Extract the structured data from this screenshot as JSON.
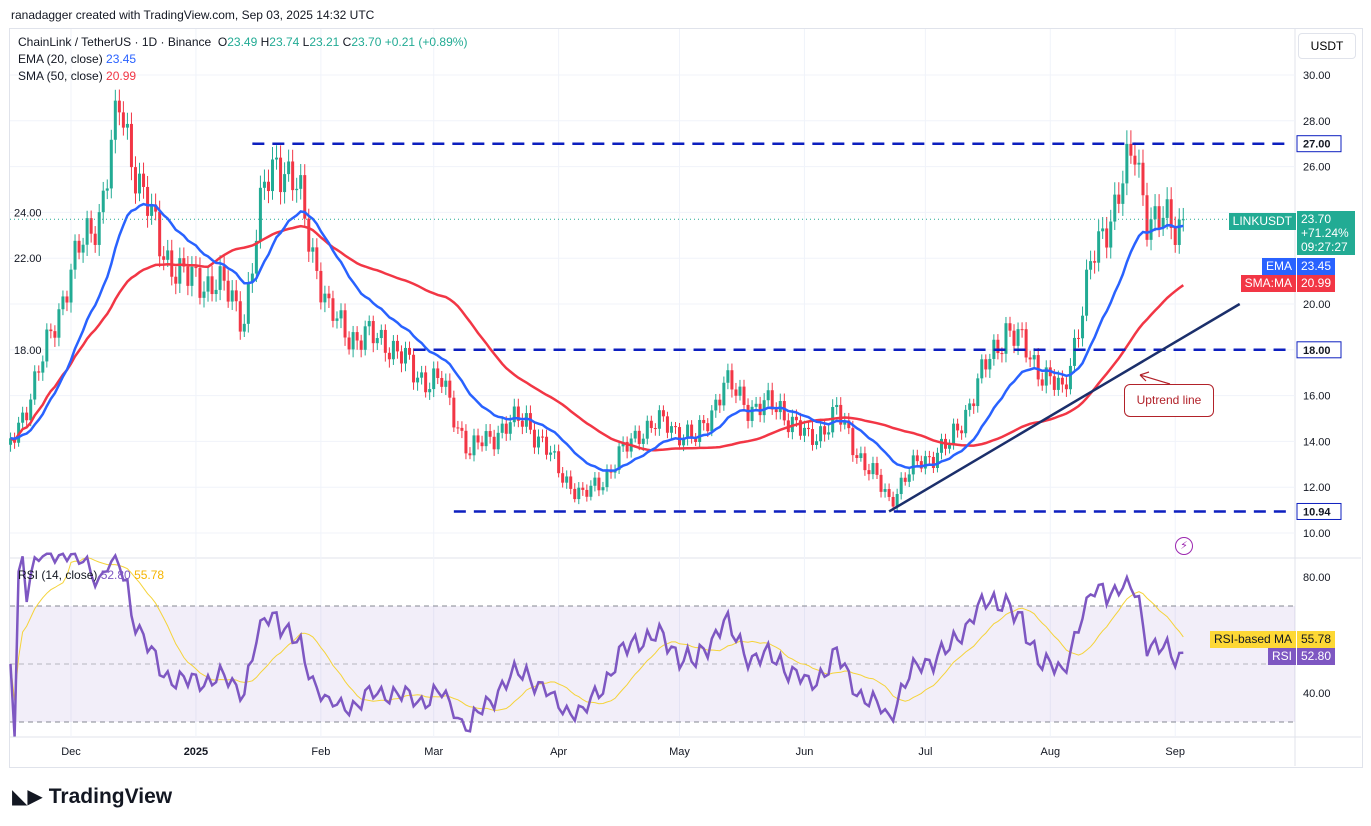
{
  "header": {
    "credit": "ranadagger created with TradingView.com, Sep 03, 2025 14:32 UTC",
    "symbol": "ChainLink / TetherUS · 1D · Binance",
    "o": "23.49",
    "h": "23.74",
    "l": "23.21",
    "c": "23.70",
    "change": "+0.21 (+0.89%)",
    "ema_label": "EMA (20, close)",
    "ema_value": "23.45",
    "sma_label": "SMA (50, close)",
    "sma_value": "20.99",
    "rsi_label": "RSI (14, close)",
    "rsi_value": "52.80",
    "rsi_ma_value": "55.78"
  },
  "currency": "USDT",
  "tags": {
    "symbol": "LINKUSDT",
    "price": "23.70",
    "pct": "+71.24%",
    "countdown": "09:27:27",
    "ema": "EMA",
    "ema_val": "23.45",
    "sma": "SMA:MA",
    "sma_val": "20.99",
    "rsi_ma": "RSI-based MA",
    "rsi_ma_val": "55.78",
    "rsi": "RSI",
    "rsi_val": "52.80"
  },
  "logo": "TradingView",
  "colors": {
    "up": "#22ab94",
    "down": "#f23645",
    "ema": "#2962ff",
    "sma": "#f23645",
    "rsi": "#7e57c2",
    "rsi_ma": "#f5d33a",
    "level": "#0d1fbf",
    "trend": "#1b2f6b"
  },
  "chart_data": {
    "type": "candlestick",
    "price_axis": {
      "ticks": [
        10,
        12,
        14,
        16,
        18,
        20,
        22,
        24,
        26,
        28,
        30
      ],
      "range": [
        9.5,
        31
      ]
    },
    "time_axis": {
      "ticks": [
        {
          "date": "2024-12-01",
          "label": "Dec"
        },
        {
          "date": "2025-01-01",
          "label": "2025"
        },
        {
          "date": "2025-02-01",
          "label": "Feb"
        },
        {
          "date": "2025-03-01",
          "label": "Mar"
        },
        {
          "date": "2025-04-01",
          "label": "Apr"
        },
        {
          "date": "2025-05-01",
          "label": "May"
        },
        {
          "date": "2025-06-01",
          "label": "Jun"
        },
        {
          "date": "2025-07-01",
          "label": "Jul"
        },
        {
          "date": "2025-08-01",
          "label": "Aug"
        },
        {
          "date": "2025-09-01",
          "label": "Sep"
        }
      ]
    },
    "closes": [
      [
        "2024-11-16",
        13.8
      ],
      [
        "2024-11-24",
        17.5
      ],
      [
        "2024-12-01",
        21.5
      ],
      [
        "2024-12-08",
        24
      ],
      [
        "2024-12-13",
        28.5
      ],
      [
        "2024-12-17",
        26
      ],
      [
        "2024-12-23",
        22.5
      ],
      [
        "2024-12-30",
        21
      ],
      [
        "2025-01-06",
        21
      ],
      [
        "2025-01-13",
        19.5
      ],
      [
        "2025-01-18",
        25
      ],
      [
        "2025-01-21",
        26.5
      ],
      [
        "2025-01-27",
        24.5
      ],
      [
        "2025-02-03",
        19.5
      ],
      [
        "2025-02-10",
        18.5
      ],
      [
        "2025-02-17",
        18.5
      ],
      [
        "2025-02-24",
        17
      ],
      [
        "2025-03-03",
        16.5
      ],
      [
        "2025-03-10",
        13.5
      ],
      [
        "2025-03-17",
        14.5
      ],
      [
        "2025-03-24",
        15
      ],
      [
        "2025-03-31",
        13
      ],
      [
        "2025-04-07",
        11.5
      ],
      [
        "2025-04-14",
        12.8
      ],
      [
        "2025-04-21",
        14.5
      ],
      [
        "2025-04-28",
        14.8
      ],
      [
        "2025-05-05",
        14
      ],
      [
        "2025-05-12",
        16.5
      ],
      [
        "2025-05-19",
        15.5
      ],
      [
        "2025-05-26",
        15.5
      ],
      [
        "2025-06-02",
        14
      ],
      [
        "2025-06-09",
        15.2
      ],
      [
        "2025-06-16",
        13
      ],
      [
        "2025-06-22",
        11.5
      ],
      [
        "2025-06-30",
        13.2
      ],
      [
        "2025-07-07",
        13.8
      ],
      [
        "2025-07-14",
        16.5
      ],
      [
        "2025-07-21",
        19
      ],
      [
        "2025-07-28",
        17.5
      ],
      [
        "2025-08-04",
        16
      ],
      [
        "2025-08-11",
        21.5
      ],
      [
        "2025-08-18",
        25
      ],
      [
        "2025-08-22",
        26.5
      ],
      [
        "2025-08-25",
        24
      ],
      [
        "2025-09-01",
        23.2
      ],
      [
        "2025-09-03",
        23.7
      ]
    ],
    "levels": [
      {
        "value": 27.0,
        "label": "27.00",
        "from": "2025-01-15"
      },
      {
        "value": 18.0,
        "label": "18.00",
        "from": "2025-02-24"
      },
      {
        "value": 10.94,
        "label": "10.94",
        "from": "2025-03-06"
      }
    ],
    "trendline": {
      "from": [
        "2025-06-22",
        10.94
      ],
      "to": [
        "2025-09-17",
        20.0
      ],
      "label": "Uptrend line"
    },
    "rsi_axis": {
      "ticks": [
        40,
        80
      ],
      "bands": [
        30,
        50,
        70
      ]
    }
  }
}
